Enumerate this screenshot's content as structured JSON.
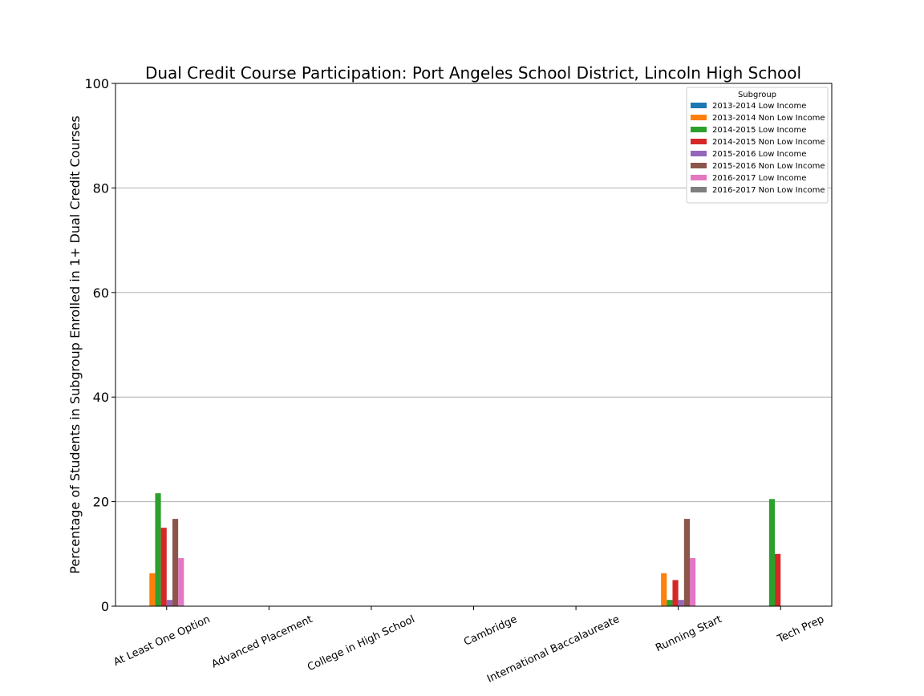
{
  "chart_data": {
    "type": "bar",
    "title": "Dual Credit Course Participation: Port Angeles School District, Lincoln High School",
    "xlabel": "",
    "ylabel": "Percentage of Students in Subgroup Enrolled in 1+ Dual Credit Courses",
    "ylim": [
      0,
      100
    ],
    "yticks": [
      0,
      20,
      40,
      60,
      80,
      100
    ],
    "grid": "y",
    "legend": {
      "title": "Subgroup",
      "placement": "top-right"
    },
    "categories": [
      "At Least One Option",
      "Advanced Placement",
      "College in High School",
      "Cambridge",
      "International Baccalaureate",
      "Running Start",
      "Tech Prep"
    ],
    "series": [
      {
        "name": "2013-2014 Low Income",
        "color": "#1f77b4",
        "values": [
          0,
          0,
          0,
          0,
          0,
          0,
          0
        ]
      },
      {
        "name": "2013-2014 Non Low Income",
        "color": "#ff7f0e",
        "values": [
          6.3,
          0,
          0,
          0,
          0,
          6.3,
          0
        ]
      },
      {
        "name": "2014-2015 Low Income",
        "color": "#2ca02c",
        "values": [
          21.6,
          0,
          0,
          0,
          0,
          1.2,
          20.5
        ]
      },
      {
        "name": "2014-2015 Non Low Income",
        "color": "#d62728",
        "values": [
          15.0,
          0,
          0,
          0,
          0,
          5.0,
          10.0
        ]
      },
      {
        "name": "2015-2016 Low Income",
        "color": "#9467bd",
        "values": [
          1.2,
          0,
          0,
          0,
          0,
          1.2,
          0
        ]
      },
      {
        "name": "2015-2016 Non Low Income",
        "color": "#8c564b",
        "values": [
          16.7,
          0,
          0,
          0,
          0,
          16.7,
          0
        ]
      },
      {
        "name": "2016-2017 Low Income",
        "color": "#e377c2",
        "values": [
          9.2,
          0,
          0,
          0,
          0,
          9.2,
          0
        ]
      },
      {
        "name": "2016-2017 Non Low Income",
        "color": "#7f7f7f",
        "values": [
          0,
          0,
          0,
          0,
          0,
          0,
          0
        ]
      }
    ]
  }
}
